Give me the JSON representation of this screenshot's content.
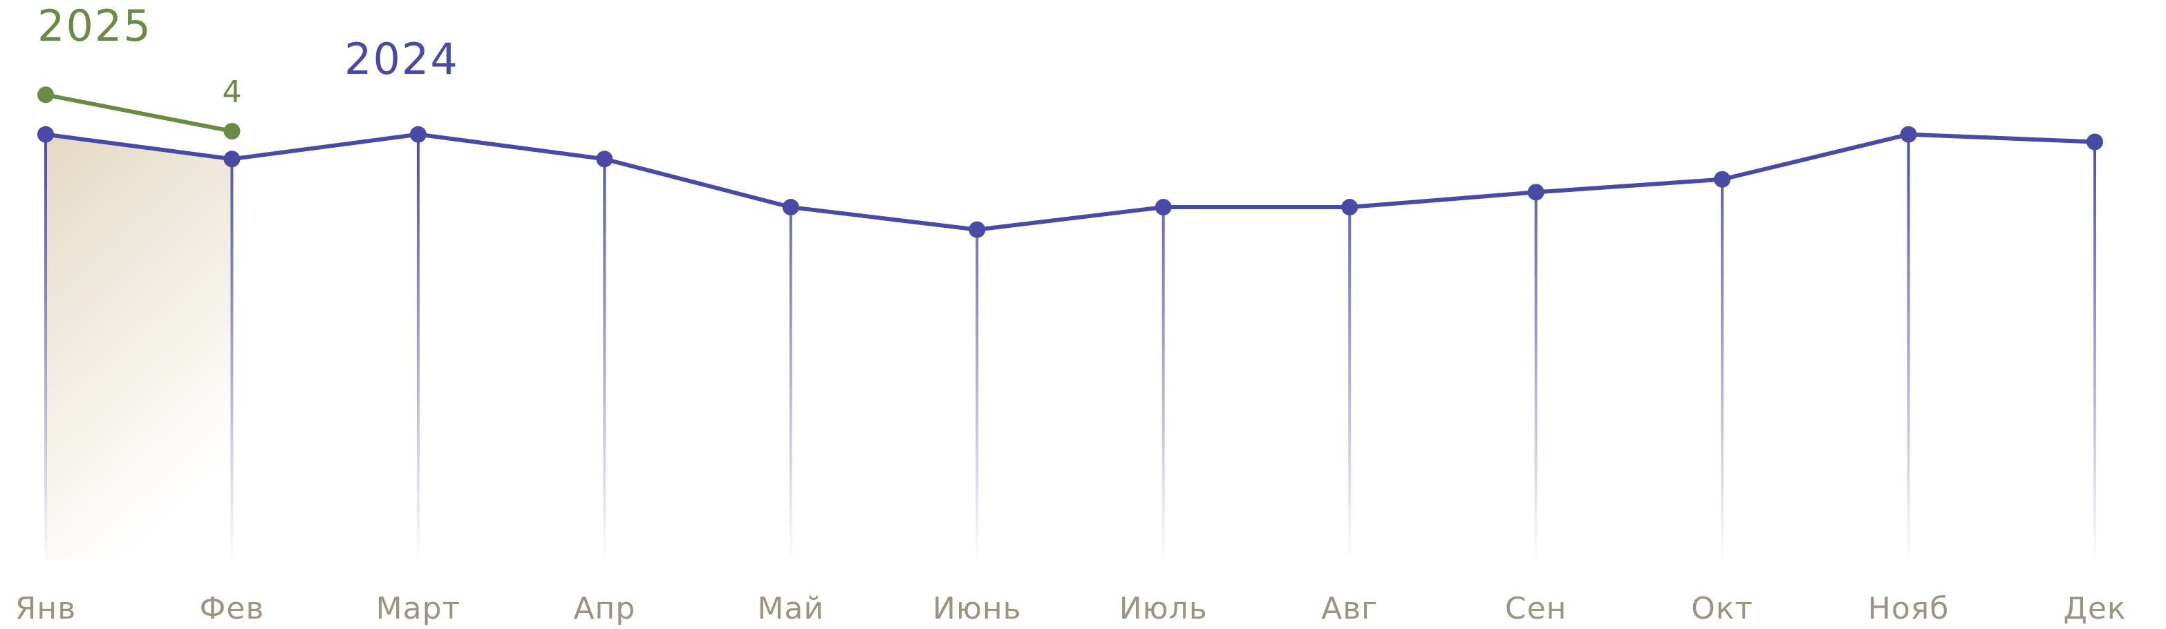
{
  "chart_data": {
    "type": "line",
    "categories": [
      "Янв",
      "Фев",
      "Март",
      "Апр",
      "Май",
      "Июнь",
      "Июль",
      "Авг",
      "Сен",
      "Окт",
      "Нояб",
      "Дек"
    ],
    "series": [
      {
        "name": "2025",
        "color": "#6b8a45",
        "values": [
          4.34,
          4,
          null,
          null,
          null,
          null,
          null,
          null,
          null,
          null,
          null,
          null
        ]
      },
      {
        "name": "2024",
        "color": "#4949a6",
        "values": [
          3.97,
          3.74,
          3.97,
          3.74,
          3.29,
          3.08,
          3.29,
          3.29,
          3.43,
          3.55,
          3.97,
          3.9
        ]
      }
    ]
  }
}
